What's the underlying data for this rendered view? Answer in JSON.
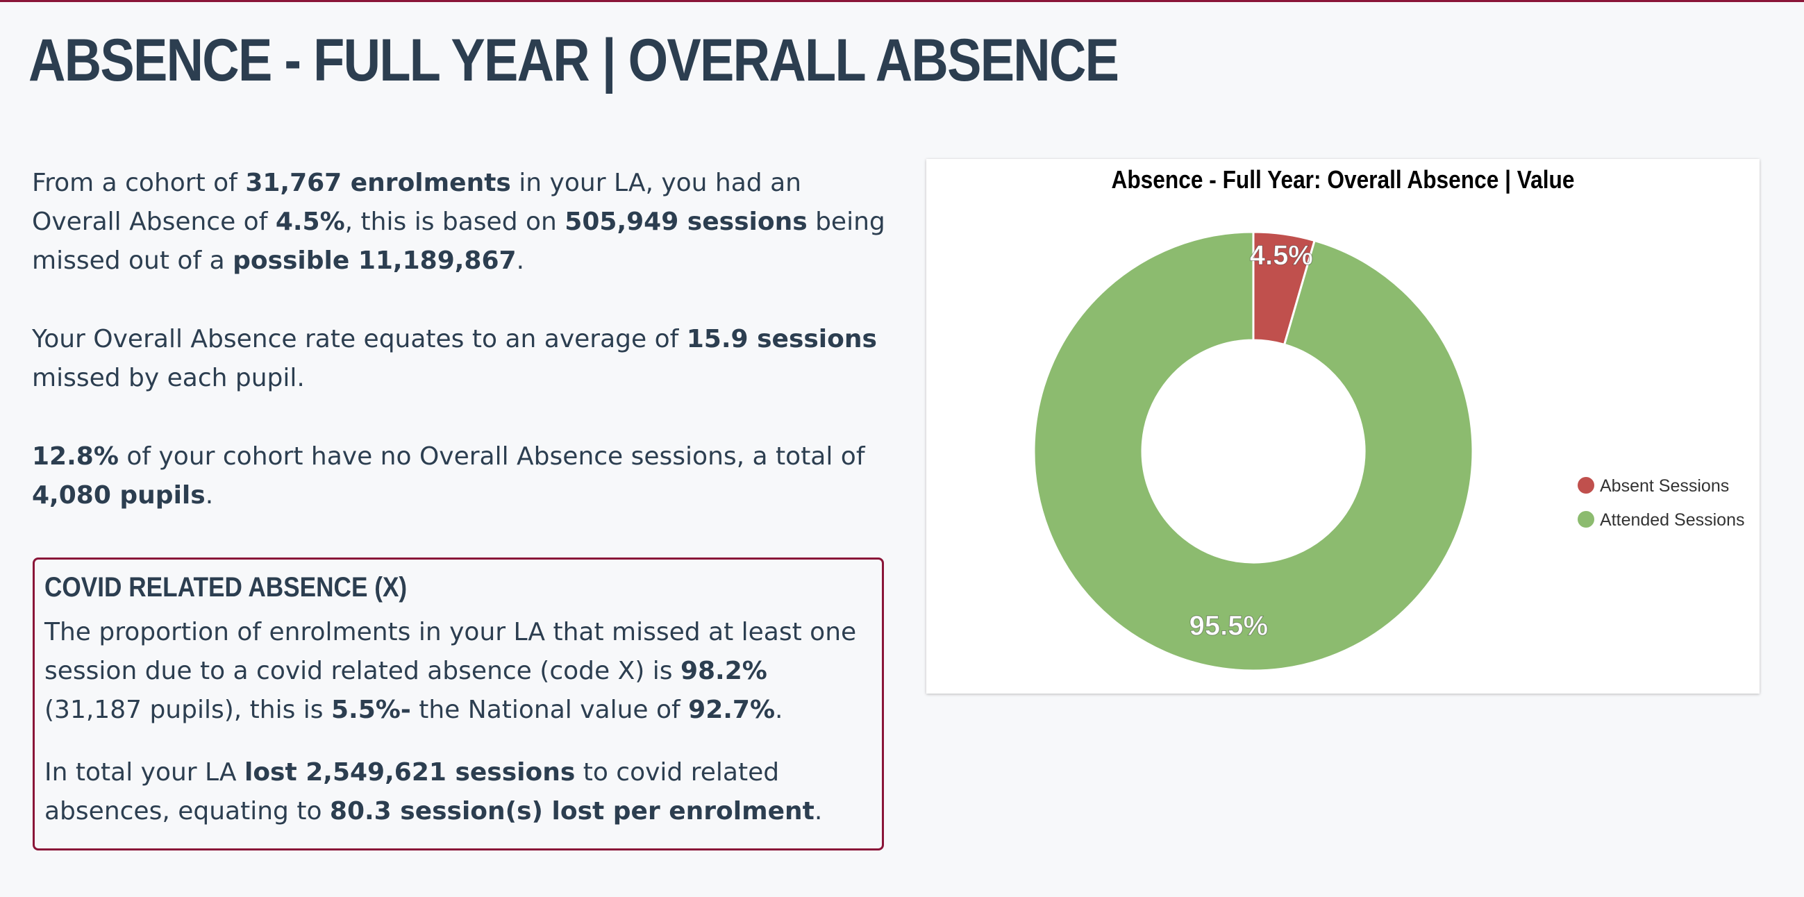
{
  "page": {
    "title": "ABSENCE - FULL YEAR | OVERALL ABSENCE"
  },
  "summary": {
    "p1": {
      "t1": "From a cohort of ",
      "b1": "31,767 enrolments",
      "t2": " in your LA, you had an Overall Absence of ",
      "b2": "4.5%",
      "t3": ", this is based on ",
      "b3": "505,949 sessions",
      "t4": " being missed out of a ",
      "b4": "possible 11,189,867",
      "t5": "."
    },
    "p2": {
      "t1": "Your Overall Absence rate equates to an average of ",
      "b1": "15.9 sessions",
      "t2": " missed by each pupil."
    },
    "p3": {
      "b1": "12.8%",
      "t1": " of your cohort have no Overall Absence sessions, a total of ",
      "b2": "4,080 pupils",
      "t2": "."
    }
  },
  "covid": {
    "title": "COVID RELATED ABSENCE (X)",
    "p1": {
      "t1": "The proportion of enrolments in your LA that missed at least one session due to a covid related absence (code X) is ",
      "b1": "98.2%",
      "t2": " (31,187 pupils), this is ",
      "b2": "5.5%-",
      "t3": " the National value of ",
      "b3": "92.7%",
      "t4": "."
    },
    "p2": {
      "t1": "In total your LA ",
      "b1": "lost 2,549,621 sessions",
      "t2": " to covid related absences, equating to ",
      "b2": "80.3 session(s) lost per enrolment",
      "t3": "."
    }
  },
  "chart_data": {
    "type": "pie",
    "title": "Absence - Full Year: Overall Absence | Value",
    "donut": true,
    "legend_position": "right",
    "series": [
      {
        "name": "Absent Sessions",
        "value": 4.5,
        "label": "4.5%",
        "color": "#c0504d"
      },
      {
        "name": "Attended Sessions",
        "value": 95.5,
        "label": "95.5%",
        "color": "#8cbb6f"
      }
    ]
  }
}
